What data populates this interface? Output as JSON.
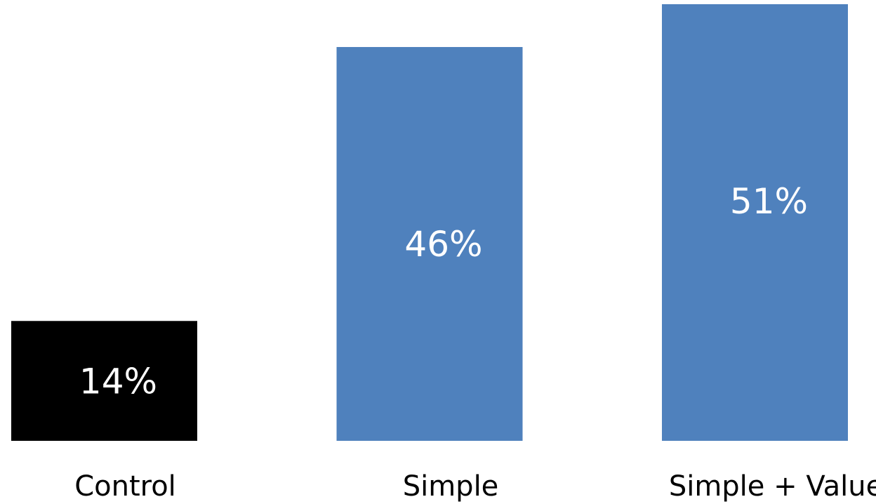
{
  "chart_data": {
    "type": "bar",
    "categories": [
      "Control",
      "Simple",
      "Simple + Value"
    ],
    "values": [
      14,
      46,
      51
    ],
    "value_labels": [
      "14%",
      "46%",
      "51%"
    ],
    "ylim": [
      0,
      51
    ],
    "grid": false,
    "legend": "none",
    "title": "",
    "xlabel": "",
    "ylabel": ""
  },
  "colors": {
    "bars": [
      "#000000",
      "#4f81bd",
      "#4f81bd"
    ],
    "value_text": "#ffffff",
    "category_text": "#000000",
    "background": "#ffffff"
  }
}
